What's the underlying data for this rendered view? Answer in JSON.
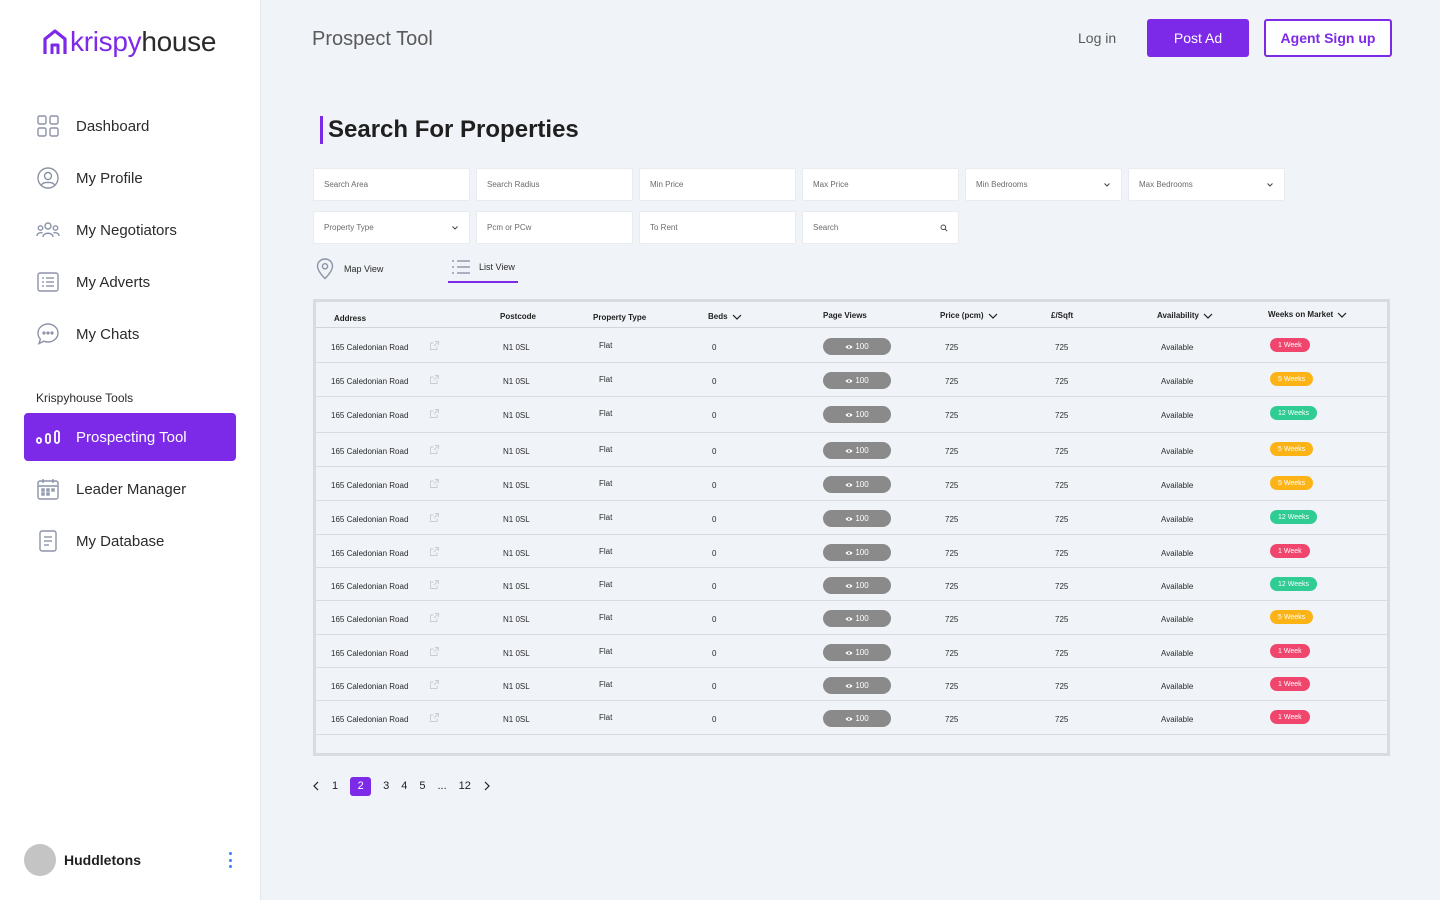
{
  "brand": {
    "part1": "krispy",
    "part2": "house",
    "accent": "#7d2ae8"
  },
  "sidebar": {
    "items": [
      {
        "label": "Dashboard",
        "icon": "dashboard-grid-icon"
      },
      {
        "label": "My Profile",
        "icon": "user-circle-icon"
      },
      {
        "label": "My Negotiators",
        "icon": "users-group-icon"
      },
      {
        "label": "My Adverts",
        "icon": "list-icon"
      },
      {
        "label": "My Chats",
        "icon": "chat-bubble-icon"
      }
    ],
    "section_label": "Krispyhouse Tools",
    "tools": [
      {
        "label": "Prospecting Tool",
        "icon": "bar-chart-icon",
        "active": true
      },
      {
        "label": "Leader Manager",
        "icon": "calendar-icon"
      },
      {
        "label": "My Database",
        "icon": "document-icon"
      }
    ],
    "user": {
      "name": "Huddletons"
    }
  },
  "header": {
    "title": "Prospect Tool",
    "login": "Log in",
    "post_ad": "Post Ad",
    "agent_signup": "Agent Sign up"
  },
  "main": {
    "section_title": "Search For Properties",
    "filters": {
      "search_area": "Search Area",
      "search_radius": "Search Radius",
      "min_price": "Min Price",
      "max_price": "Max Price",
      "min_bedrooms": "Min Bedrooms",
      "max_bedrooms": "Max Bedrooms",
      "property_type": "Property Type",
      "pcm_pcw": "Pcm or PCw",
      "to_rent": "To Rent",
      "search": "Search"
    },
    "views": {
      "map": "Map View",
      "list": "List View",
      "selected": "List View"
    },
    "table": {
      "headers": {
        "address": "Address",
        "postcode": "Postcode",
        "property_type": "Property Type",
        "beds": "Beds",
        "page_views": "Page Views",
        "price": "Price (pcm)",
        "sqft": "£/Sqft",
        "availability": "Availability",
        "weeks": "Weeks on Market"
      },
      "rows": [
        {
          "address": "165 Caledonian Road",
          "postcode": "N1 0SL",
          "type": "Flat",
          "beds": "0",
          "views": "100",
          "price": "725",
          "sqft": "725",
          "availability": "Available",
          "weeks": "1 Week",
          "color": "#f0466e"
        },
        {
          "address": "165 Caledonian Road",
          "postcode": "N1 0SL",
          "type": "Flat",
          "beds": "0",
          "views": "100",
          "price": "725",
          "sqft": "725",
          "availability": "Available",
          "weeks": "5 Weeks",
          "color": "#fbb316"
        },
        {
          "address": "165 Caledonian Road",
          "postcode": "N1 0SL",
          "type": "Flat",
          "beds": "0",
          "views": "100",
          "price": "725",
          "sqft": "725",
          "availability": "Available",
          "weeks": "12 Weeks",
          "color": "#2fcc94"
        },
        {
          "address": "165 Caledonian Road",
          "postcode": "N1 0SL",
          "type": "Flat",
          "beds": "0",
          "views": "100",
          "price": "725",
          "sqft": "725",
          "availability": "Available",
          "weeks": "5 Weeks",
          "color": "#fbb316"
        },
        {
          "address": "165 Caledonian Road",
          "postcode": "N1 0SL",
          "type": "Flat",
          "beds": "0",
          "views": "100",
          "price": "725",
          "sqft": "725",
          "availability": "Available",
          "weeks": "5 Weeks",
          "color": "#fbb316"
        },
        {
          "address": "165 Caledonian Road",
          "postcode": "N1 0SL",
          "type": "Flat",
          "beds": "0",
          "views": "100",
          "price": "725",
          "sqft": "725",
          "availability": "Available",
          "weeks": "12 Weeks",
          "color": "#2fcc94"
        },
        {
          "address": "165 Caledonian Road",
          "postcode": "N1 0SL",
          "type": "Flat",
          "beds": "0",
          "views": "100",
          "price": "725",
          "sqft": "725",
          "availability": "Available",
          "weeks": "1 Week",
          "color": "#f0466e"
        },
        {
          "address": "165 Caledonian Road",
          "postcode": "N1 0SL",
          "type": "Flat",
          "beds": "0",
          "views": "100",
          "price": "725",
          "sqft": "725",
          "availability": "Available",
          "weeks": "12 Weeks",
          "color": "#2fcc94"
        },
        {
          "address": "165 Caledonian Road",
          "postcode": "N1 0SL",
          "type": "Flat",
          "beds": "0",
          "views": "100",
          "price": "725",
          "sqft": "725",
          "availability": "Available",
          "weeks": "5 Weeks",
          "color": "#fbb316"
        },
        {
          "address": "165 Caledonian Road",
          "postcode": "N1 0SL",
          "type": "Flat",
          "beds": "0",
          "views": "100",
          "price": "725",
          "sqft": "725",
          "availability": "Available",
          "weeks": "1 Week",
          "color": "#f0466e"
        },
        {
          "address": "165 Caledonian Road",
          "postcode": "N1 0SL",
          "type": "Flat",
          "beds": "0",
          "views": "100",
          "price": "725",
          "sqft": "725",
          "availability": "Available",
          "weeks": "1 Week",
          "color": "#f0466e"
        },
        {
          "address": "165 Caledonian Road",
          "postcode": "N1 0SL",
          "type": "Flat",
          "beds": "0",
          "views": "100",
          "price": "725",
          "sqft": "725",
          "availability": "Available",
          "weeks": "1 Week",
          "color": "#f0466e"
        }
      ]
    },
    "pagination": {
      "pages": [
        "1",
        "2",
        "3",
        "4",
        "5",
        "...",
        "12"
      ],
      "current": "2"
    }
  }
}
